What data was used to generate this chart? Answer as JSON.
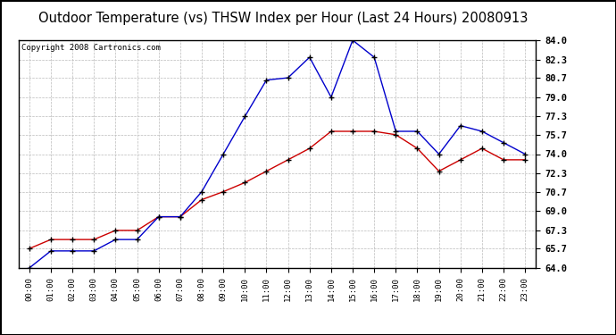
{
  "title": "Outdoor Temperature (vs) THSW Index per Hour (Last 24 Hours) 20080913",
  "copyright": "Copyright 2008 Cartronics.com",
  "hours": [
    "00:00",
    "01:00",
    "02:00",
    "03:00",
    "04:00",
    "05:00",
    "06:00",
    "07:00",
    "08:00",
    "09:00",
    "10:00",
    "11:00",
    "12:00",
    "13:00",
    "14:00",
    "15:00",
    "16:00",
    "17:00",
    "18:00",
    "19:00",
    "20:00",
    "21:00",
    "22:00",
    "23:00"
  ],
  "temp": [
    65.7,
    66.5,
    66.5,
    66.5,
    67.3,
    67.3,
    68.5,
    68.5,
    70.0,
    70.7,
    71.5,
    72.5,
    73.5,
    74.5,
    76.0,
    76.0,
    76.0,
    75.7,
    74.5,
    72.5,
    73.5,
    74.5,
    73.5,
    73.5
  ],
  "thsw": [
    64.0,
    65.5,
    65.5,
    65.5,
    66.5,
    66.5,
    68.5,
    68.5,
    70.7,
    74.0,
    77.3,
    80.5,
    80.7,
    82.5,
    79.0,
    84.0,
    82.5,
    76.0,
    76.0,
    74.0,
    76.5,
    76.0,
    75.0,
    74.0
  ],
  "ylim": [
    64.0,
    84.0
  ],
  "yticks": [
    64.0,
    65.7,
    67.3,
    69.0,
    70.7,
    72.3,
    74.0,
    75.7,
    77.3,
    79.0,
    80.7,
    82.3,
    84.0
  ],
  "temp_color": "#cc0000",
  "thsw_color": "#0000cc",
  "bg_color": "#ffffff",
  "grid_color": "#bbbbbb",
  "title_fontsize": 10.5,
  "copyright_fontsize": 6.5
}
